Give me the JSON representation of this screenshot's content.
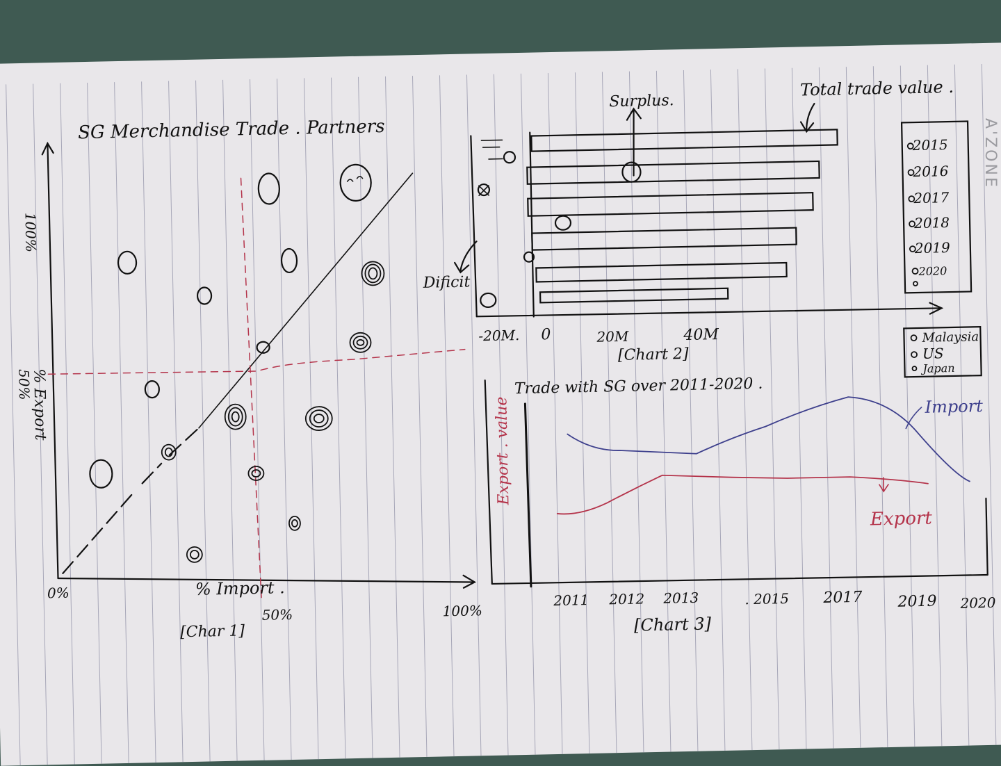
{
  "brand": "A'ZONE",
  "chart1": {
    "title": "SG Merchandise Trade . Partners",
    "x_label": "% Import .",
    "y_label": "% Export",
    "x_ticks": [
      "0%",
      "50%",
      "100%"
    ],
    "y_ticks": [
      "100%",
      "50%"
    ],
    "caption": "[Char 1]"
  },
  "chart2": {
    "annotations": {
      "surplus": "Surplus.",
      "total": "Total trade value .",
      "deficit": "Dificit"
    },
    "x_ticks": [
      "-20M.",
      "0",
      "20M",
      "40M"
    ],
    "caption": "[Chart 2]",
    "year_legend": [
      "2015",
      "2016",
      "2017",
      "2018",
      "2019",
      "2020"
    ],
    "country_legend": [
      "Malaysia",
      "US",
      "Japan"
    ]
  },
  "chart3": {
    "title": "Trade with SG over 2011-2020 .",
    "y_label": "Export . value",
    "series_labels": {
      "import": "Import",
      "export": "Export"
    },
    "x_ticks": [
      "2011",
      "2012",
      "2013",
      ". 2015",
      "2017",
      "2019",
      "2020"
    ],
    "caption": "[Chart 3]"
  },
  "colors": {
    "ink": "#111111",
    "red_pen": "#b4334a",
    "blue_pen": "#3d3f8c",
    "paper": "#e9e7ea",
    "rule": "#a7a7b8"
  }
}
